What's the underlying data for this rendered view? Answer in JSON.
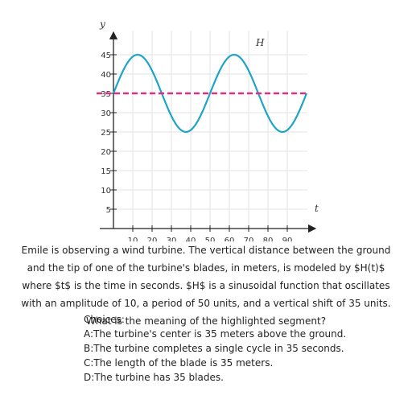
{
  "chart_data": {
    "type": "line",
    "xlabel": "t",
    "ylabel": "y",
    "xlim": [
      0,
      100
    ],
    "ylim": [
      0,
      50
    ],
    "xticks": [
      10,
      20,
      30,
      40,
      50,
      60,
      70,
      80,
      90
    ],
    "yticks": [
      5,
      10,
      15,
      20,
      25,
      30,
      35,
      40,
      45
    ],
    "grid": true,
    "series": [
      {
        "name": "H",
        "color": "#1ea5c6",
        "function": {
          "amplitude": 10,
          "period": 50,
          "vertical_shift": 35,
          "phase_shift": 0
        },
        "x_range": [
          0,
          100
        ]
      }
    ],
    "highlight": {
      "type": "horizontal-dashed-line",
      "y": 35,
      "color": "#d63384"
    }
  },
  "question": {
    "text": "Emile is observing a wind turbine. The vertical distance between the ground and the tip of one of the turbine's blades, in meters, is modeled by $H(t)$ where $t$ is the time in seconds. $H$ is a sinusoidal function that oscillates with an amplitude of 10, a period of 50 units, and a vertical shift of 35 units. What is the meaning of the highlighted segment?"
  },
  "choices": {
    "heading": "Choices:",
    "items": [
      "A:The turbine's center is 35 meters above the ground.",
      "B:The turbine completes a single cycle in 35 seconds.",
      "C:The length of the blade is 35 meters.",
      "D:The turbine has 35 blades."
    ]
  }
}
